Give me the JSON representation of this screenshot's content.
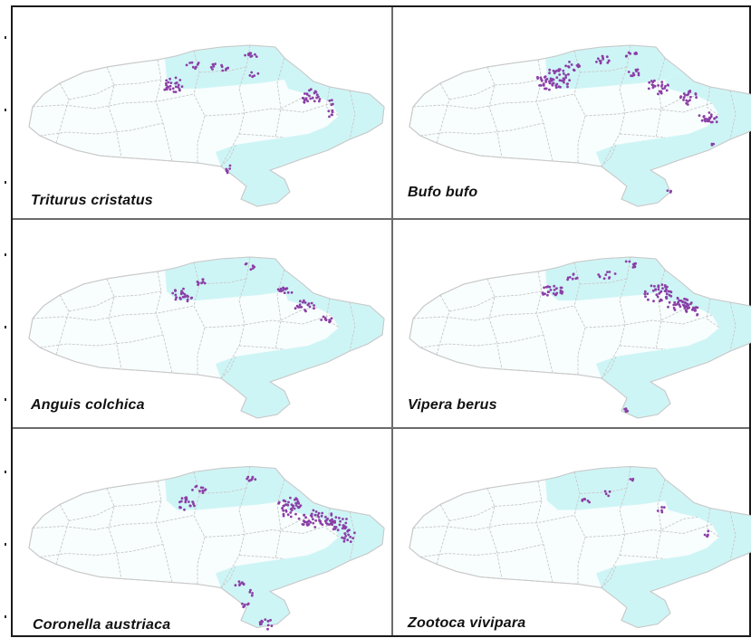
{
  "colors": {
    "land": "#e2fafa",
    "range": "#cef5f6",
    "border": "#c9c9c9",
    "record": "#8b3fa6"
  },
  "panels": [
    {
      "species": "Triturus cristatus"
    },
    {
      "species": "Bufo bufo"
    },
    {
      "species": "Anguis colchica"
    },
    {
      "species": "Vipera berus"
    },
    {
      "species": "Coronella austriaca"
    },
    {
      "species": "Zootoca vivipara"
    }
  ]
}
